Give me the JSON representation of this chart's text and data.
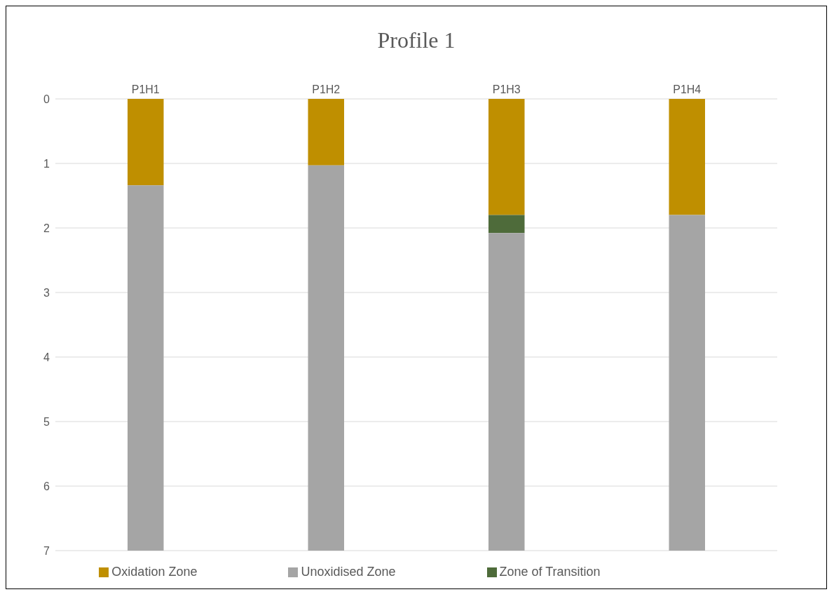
{
  "chart_data": {
    "type": "bar",
    "stacked": true,
    "title": "Profile 1",
    "categories": [
      "P1H1",
      "P1H2",
      "P1H3",
      "P1H4"
    ],
    "series": [
      {
        "name": "Oxidation Zone",
        "color": "#bf8f00",
        "values": [
          1.34,
          1.03,
          1.8,
          1.8
        ]
      },
      {
        "name": "Zone of Transition",
        "color": "#4e6b3a",
        "values": [
          0,
          0,
          0.28,
          0
        ]
      },
      {
        "name": "Unoxidised Zone",
        "color": "#a5a5a5",
        "values": [
          5.66,
          5.97,
          4.92,
          5.2
        ]
      }
    ],
    "ylim": [
      7,
      0
    ],
    "yticks": [
      0,
      1,
      2,
      3,
      4,
      5,
      6,
      7
    ],
    "grid": "y",
    "legend": "bottom"
  }
}
